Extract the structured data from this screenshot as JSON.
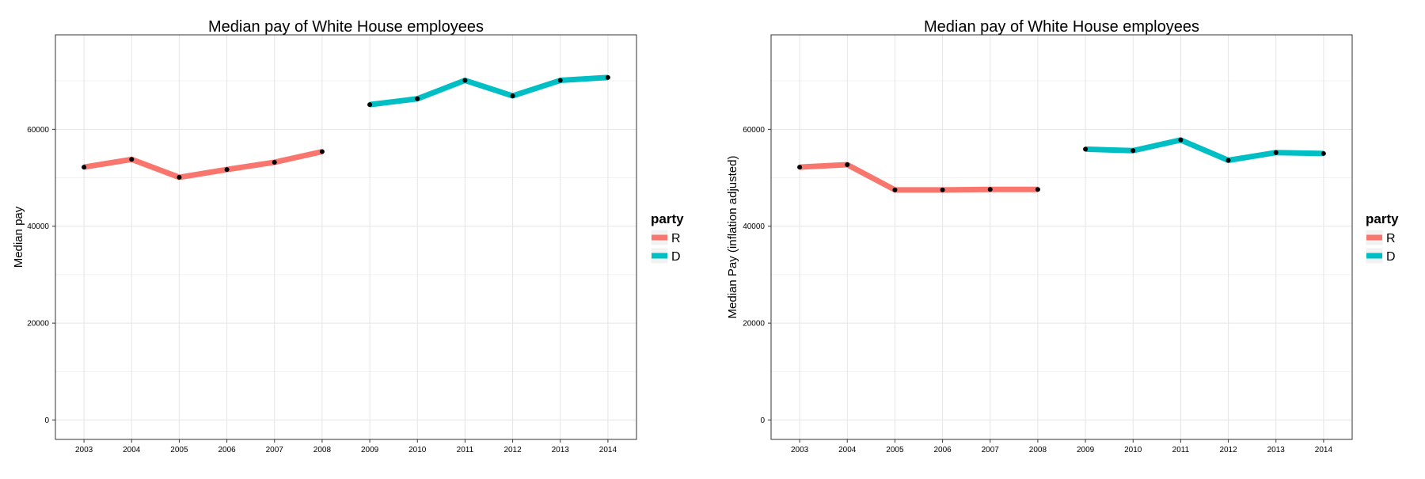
{
  "legend": {
    "title": "party",
    "entries": [
      {
        "key": "R",
        "label": "R",
        "color": "#f8766d"
      },
      {
        "key": "D",
        "label": "D",
        "color": "#00bfc4"
      }
    ]
  },
  "point_color": "#000000",
  "panel_border_color": "#333333",
  "grid_color": "#e5e5e5",
  "chart_data": [
    {
      "type": "line",
      "title": "Median pay of White House employees",
      "xlabel": "",
      "ylabel": "Median pay",
      "x": [
        2003,
        2004,
        2005,
        2006,
        2007,
        2008,
        2009,
        2010,
        2011,
        2012,
        2013,
        2014
      ],
      "ylim": [
        -4000,
        79500
      ],
      "yticks": [
        0,
        20000,
        40000,
        60000
      ],
      "grid": true,
      "legend_position": "right",
      "series": [
        {
          "name": "R",
          "x": [
            2003,
            2004,
            2005,
            2006,
            2007,
            2008
          ],
          "values": [
            52200,
            53800,
            50100,
            51700,
            53200,
            55400
          ]
        },
        {
          "name": "D",
          "x": [
            2009,
            2010,
            2011,
            2012,
            2013,
            2014
          ],
          "values": [
            65100,
            66300,
            70100,
            66900,
            70100,
            70700
          ]
        }
      ]
    },
    {
      "type": "line",
      "title": "Median pay of White House employees",
      "xlabel": "",
      "ylabel": "Median Pay (inflation adjusted)",
      "x": [
        2003,
        2004,
        2005,
        2006,
        2007,
        2008,
        2009,
        2010,
        2011,
        2012,
        2013,
        2014
      ],
      "ylim": [
        -4000,
        79500
      ],
      "yticks": [
        0,
        20000,
        40000,
        60000
      ],
      "grid": true,
      "legend_position": "right",
      "series": [
        {
          "name": "R",
          "x": [
            2003,
            2004,
            2005,
            2006,
            2007,
            2008
          ],
          "values": [
            52200,
            52700,
            47500,
            47500,
            47600,
            47600
          ]
        },
        {
          "name": "D",
          "x": [
            2009,
            2010,
            2011,
            2012,
            2013,
            2014
          ],
          "values": [
            55900,
            55600,
            57800,
            53600,
            55200,
            55000
          ]
        }
      ]
    }
  ]
}
